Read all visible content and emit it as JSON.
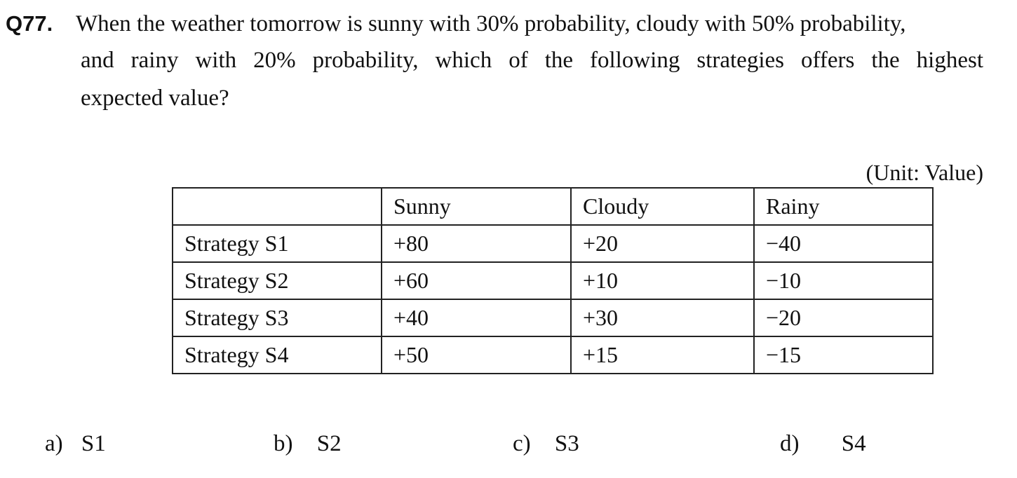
{
  "question": {
    "number": "Q77.",
    "lines": [
      "When the weather tomorrow is sunny with 30% probability, cloudy with 50% probability,",
      "and rainy with 20% probability, which of the following strategies offers the highest",
      "expected value?"
    ]
  },
  "table": {
    "unit_note": "(Unit: Value)",
    "header": [
      "",
      "Sunny",
      "Cloudy",
      "Rainy"
    ],
    "rows": [
      [
        "Strategy S1",
        "+80",
        "+20",
        "−40"
      ],
      [
        "Strategy S2",
        "+60",
        "+10",
        "−10"
      ],
      [
        "Strategy S3",
        "+40",
        "+30",
        "−20"
      ],
      [
        "Strategy S4",
        "+50",
        "+15",
        "−15"
      ]
    ]
  },
  "options": [
    {
      "letter": "a)",
      "value": "S1"
    },
    {
      "letter": "b)",
      "value": "S2"
    },
    {
      "letter": "c)",
      "value": "S3"
    },
    {
      "letter": "d)",
      "value": "S4"
    }
  ]
}
